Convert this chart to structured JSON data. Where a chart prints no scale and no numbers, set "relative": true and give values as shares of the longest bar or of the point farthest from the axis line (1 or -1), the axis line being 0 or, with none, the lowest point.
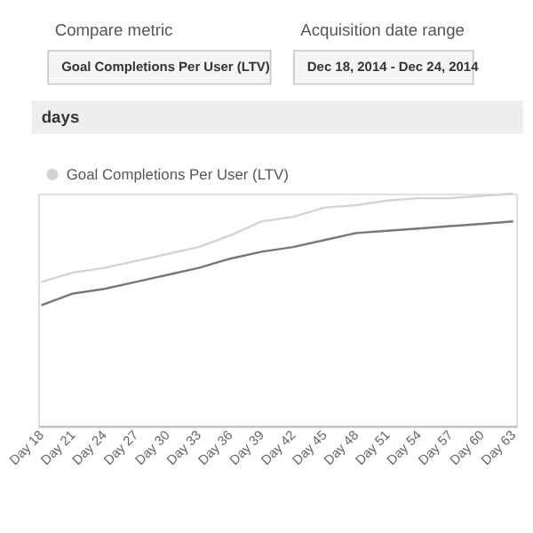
{
  "chart_data": {
    "type": "line",
    "title": "days",
    "annotations": [
      "Compare metric",
      "Goal Completions Per User (LTV)",
      "Acquisition date range",
      "Dec 18, 2014 - Dec 24, 2014"
    ],
    "categories": [
      "Day 18",
      "Day 21",
      "Day 24",
      "Day 27",
      "Day 30",
      "Day 33",
      "Day 36",
      "Day 39",
      "Day 42",
      "Day 45",
      "Day 48",
      "Day 51",
      "Day 54",
      "Day 57",
      "Day 60",
      "Day 63"
    ],
    "relative": true,
    "series": [
      {
        "name": "Goal Completions Per User (LTV)",
        "color": "#d4d4d4",
        "values": [
          0.62,
          0.66,
          0.68,
          0.71,
          0.74,
          0.77,
          0.82,
          0.88,
          0.9,
          0.94,
          0.95,
          0.97,
          0.98,
          0.98,
          0.99,
          1
        ]
      },
      {
        "color": "#777777",
        "values": [
          0.52,
          0.57,
          0.59,
          0.62,
          0.65,
          0.68,
          0.72,
          0.75,
          0.77,
          0.8,
          0.83,
          0.84,
          0.85,
          0.86,
          0.87,
          0.88
        ]
      }
    ],
    "legend": "top left",
    "marker": "none",
    "line_style": "solid"
  }
}
